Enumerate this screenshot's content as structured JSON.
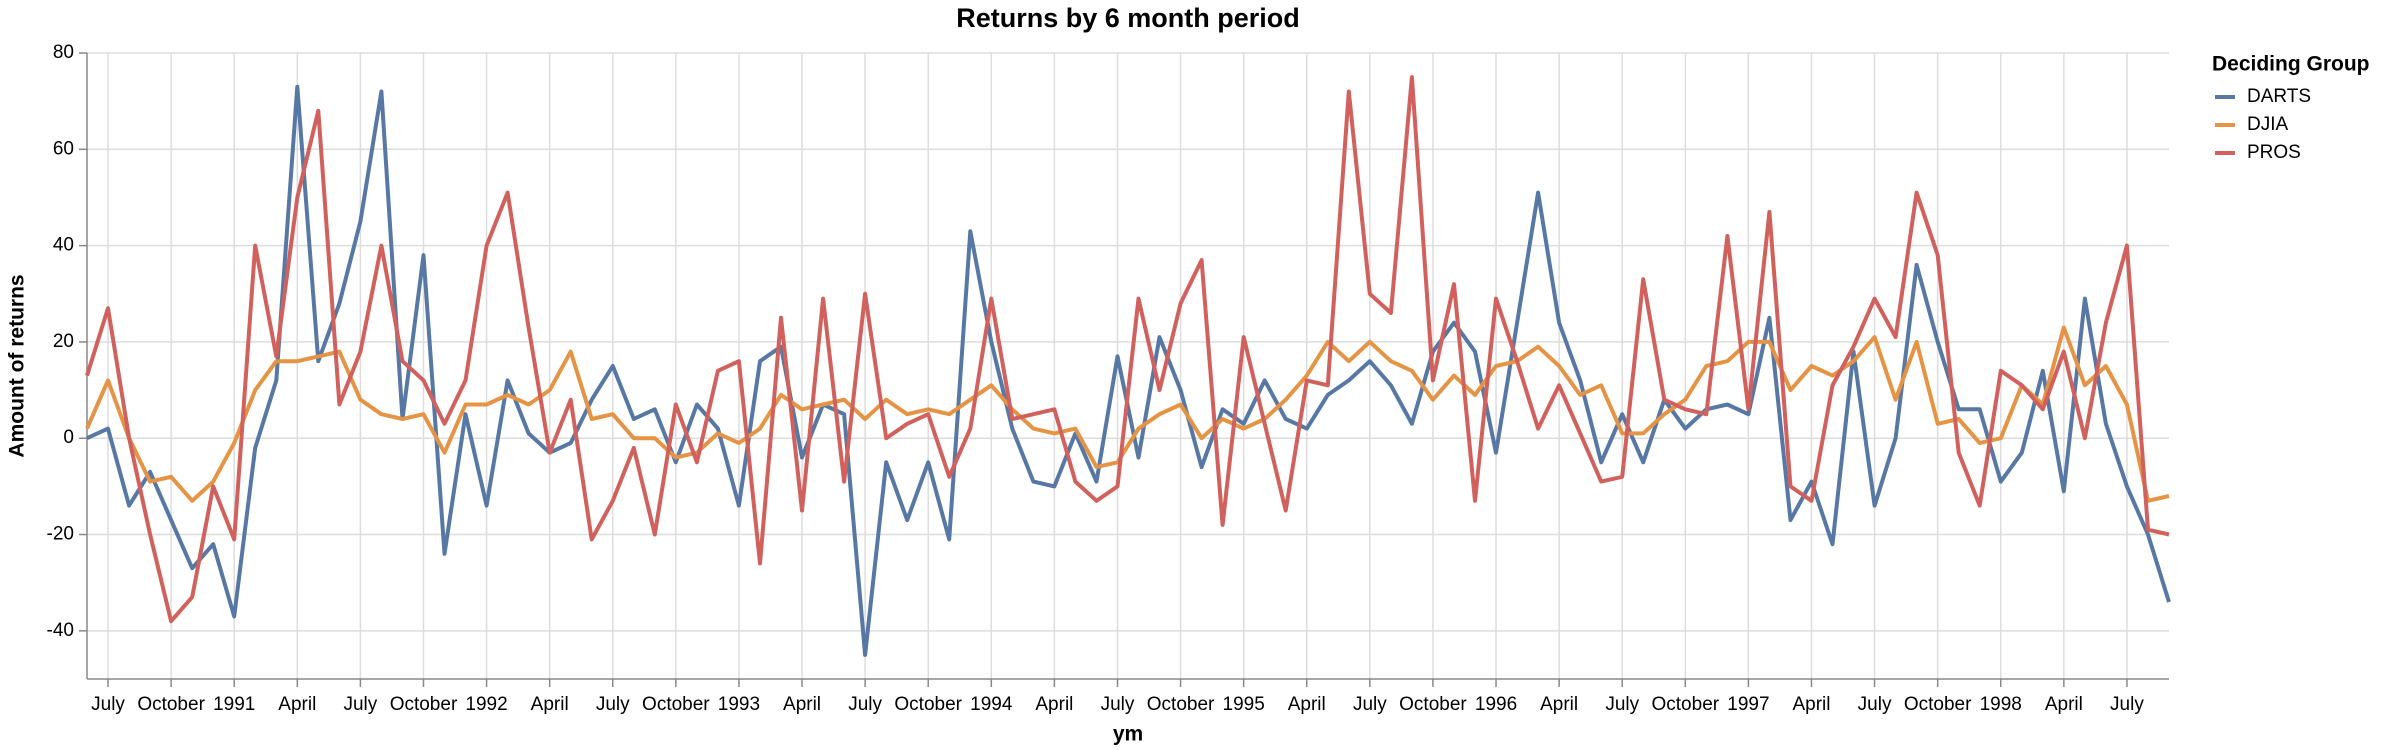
{
  "chart_data": {
    "type": "line",
    "title": "Returns by 6 month period",
    "x_label": "ym",
    "y_label": "Amount of returns",
    "legend_title": "Deciding Group",
    "legend_position": "right",
    "grid": true,
    "x": [
      "1990-06",
      "1990-07",
      "1990-08",
      "1990-09",
      "1990-10",
      "1990-11",
      "1990-12",
      "1991-01",
      "1991-02",
      "1991-03",
      "1991-04",
      "1991-05",
      "1991-06",
      "1991-07",
      "1991-08",
      "1991-09",
      "1991-10",
      "1991-11",
      "1991-12",
      "1992-01",
      "1992-02",
      "1992-03",
      "1992-04",
      "1992-05",
      "1992-06",
      "1992-07",
      "1992-08",
      "1992-09",
      "1992-10",
      "1992-11",
      "1992-12",
      "1993-01",
      "1993-02",
      "1993-03",
      "1993-04",
      "1993-05",
      "1993-06",
      "1993-07",
      "1993-08",
      "1993-09",
      "1993-10",
      "1993-11",
      "1993-12",
      "1994-01",
      "1994-02",
      "1994-03",
      "1994-04",
      "1994-05",
      "1994-06",
      "1994-07",
      "1994-08",
      "1994-09",
      "1994-10",
      "1994-11",
      "1994-12",
      "1995-01",
      "1995-02",
      "1995-03",
      "1995-04",
      "1995-05",
      "1995-06",
      "1995-07",
      "1995-08",
      "1995-09",
      "1995-10",
      "1995-11",
      "1995-12",
      "1996-01",
      "1996-02",
      "1996-03",
      "1996-04",
      "1996-05",
      "1996-06",
      "1996-07",
      "1996-08",
      "1996-09",
      "1996-10",
      "1996-11",
      "1996-12",
      "1997-01",
      "1997-02",
      "1997-03",
      "1997-04",
      "1997-05",
      "1997-06",
      "1997-07",
      "1997-08",
      "1997-09",
      "1997-10",
      "1997-11",
      "1997-12",
      "1998-01",
      "1998-02",
      "1998-03",
      "1998-04",
      "1998-05",
      "1998-06",
      "1998-07",
      "1998-08",
      "1998-09"
    ],
    "xlim": [
      "1990-06",
      "1998-09"
    ],
    "xticks": [
      {
        "value": "1990-07",
        "label": "July"
      },
      {
        "value": "1990-10",
        "label": "October"
      },
      {
        "value": "1991-01",
        "label": "1991"
      },
      {
        "value": "1991-04",
        "label": "April"
      },
      {
        "value": "1991-07",
        "label": "July"
      },
      {
        "value": "1991-10",
        "label": "October"
      },
      {
        "value": "1992-01",
        "label": "1992"
      },
      {
        "value": "1992-04",
        "label": "April"
      },
      {
        "value": "1992-07",
        "label": "July"
      },
      {
        "value": "1992-10",
        "label": "October"
      },
      {
        "value": "1993-01",
        "label": "1993"
      },
      {
        "value": "1993-04",
        "label": "April"
      },
      {
        "value": "1993-07",
        "label": "July"
      },
      {
        "value": "1993-10",
        "label": "October"
      },
      {
        "value": "1994-01",
        "label": "1994"
      },
      {
        "value": "1994-04",
        "label": "April"
      },
      {
        "value": "1994-07",
        "label": "July"
      },
      {
        "value": "1994-10",
        "label": "October"
      },
      {
        "value": "1995-01",
        "label": "1995"
      },
      {
        "value": "1995-04",
        "label": "April"
      },
      {
        "value": "1995-07",
        "label": "July"
      },
      {
        "value": "1995-10",
        "label": "October"
      },
      {
        "value": "1996-01",
        "label": "1996"
      },
      {
        "value": "1996-04",
        "label": "April"
      },
      {
        "value": "1996-07",
        "label": "July"
      },
      {
        "value": "1996-10",
        "label": "October"
      },
      {
        "value": "1997-01",
        "label": "1997"
      },
      {
        "value": "1997-04",
        "label": "April"
      },
      {
        "value": "1997-07",
        "label": "July"
      },
      {
        "value": "1997-10",
        "label": "October"
      },
      {
        "value": "1998-01",
        "label": "1998"
      },
      {
        "value": "1998-04",
        "label": "April"
      },
      {
        "value": "1998-07",
        "label": "July"
      }
    ],
    "ylim": [
      -50,
      80
    ],
    "yticks": [
      -40,
      -20,
      0,
      20,
      40,
      60,
      80
    ],
    "series": [
      {
        "name": "DARTS",
        "color": "#5778a4",
        "values": [
          0,
          2,
          -14,
          -7,
          -17,
          -27,
          -22,
          -37,
          -2,
          12,
          73,
          16,
          28,
          45,
          72,
          4,
          38,
          -24,
          5,
          -14,
          12,
          1,
          -3,
          -1,
          8,
          15,
          4,
          6,
          -5,
          7,
          2,
          -14,
          16,
          19,
          -4,
          7,
          5,
          -45,
          -5,
          -17,
          -5,
          -21,
          43,
          20,
          2,
          -9,
          -10,
          1,
          -9,
          17,
          -4,
          21,
          10,
          -6,
          6,
          3,
          12,
          4,
          2,
          9,
          12,
          16,
          11,
          3,
          18,
          24,
          18,
          -3,
          24,
          51,
          24,
          12,
          -5,
          5,
          -5,
          8,
          2,
          6,
          7,
          5,
          25,
          -17,
          -9,
          -22,
          18,
          -14,
          0,
          36,
          20,
          6,
          6,
          -9,
          -3,
          14,
          -11,
          29,
          3,
          -10,
          -20,
          -34
        ]
      },
      {
        "name": "DJIA",
        "color": "#e49444",
        "values": [
          2,
          12,
          0,
          -9,
          -8,
          -13,
          -9,
          -1,
          10,
          16,
          16,
          17,
          18,
          8,
          5,
          4,
          5,
          -3,
          7,
          7,
          9,
          7,
          10,
          18,
          4,
          5,
          0,
          0,
          -4,
          -3,
          1,
          -1,
          2,
          9,
          6,
          7,
          8,
          4,
          8,
          5,
          6,
          5,
          8,
          11,
          6,
          2,
          1,
          2,
          -6,
          -5,
          2,
          5,
          7,
          0,
          4,
          2,
          4,
          8,
          13,
          20,
          16,
          20,
          16,
          14,
          8,
          13,
          9,
          15,
          16,
          19,
          15,
          9,
          11,
          1,
          1,
          5,
          8,
          15,
          16,
          20,
          20,
          10,
          15,
          13,
          16,
          21,
          8,
          20,
          3,
          4,
          -1,
          0,
          11,
          7,
          23,
          11,
          15,
          7,
          -13,
          -12
        ]
      },
      {
        "name": "PROS",
        "color": "#d1615d",
        "values": [
          13,
          27,
          0,
          -20,
          -38,
          -33,
          -10,
          -21,
          40,
          17,
          50,
          68,
          7,
          18,
          40,
          16,
          12,
          3,
          12,
          40,
          51,
          23,
          -3,
          8,
          -21,
          -13,
          -2,
          -20,
          7,
          -5,
          14,
          16,
          -26,
          25,
          -15,
          29,
          -9,
          30,
          0,
          3,
          5,
          -8,
          2,
          29,
          4,
          5,
          6,
          -9,
          -13,
          -10,
          29,
          10,
          28,
          37,
          -18,
          21,
          3,
          -15,
          12,
          11,
          72,
          30,
          26,
          75,
          12,
          32,
          -13,
          29,
          16,
          2,
          11,
          1,
          -9,
          -8,
          33,
          8,
          6,
          5,
          42,
          6,
          47,
          -10,
          -13,
          11,
          19,
          29,
          21,
          51,
          38,
          -3,
          -14,
          14,
          11,
          6,
          18,
          0,
          24,
          40,
          -19,
          -20
        ]
      }
    ]
  }
}
